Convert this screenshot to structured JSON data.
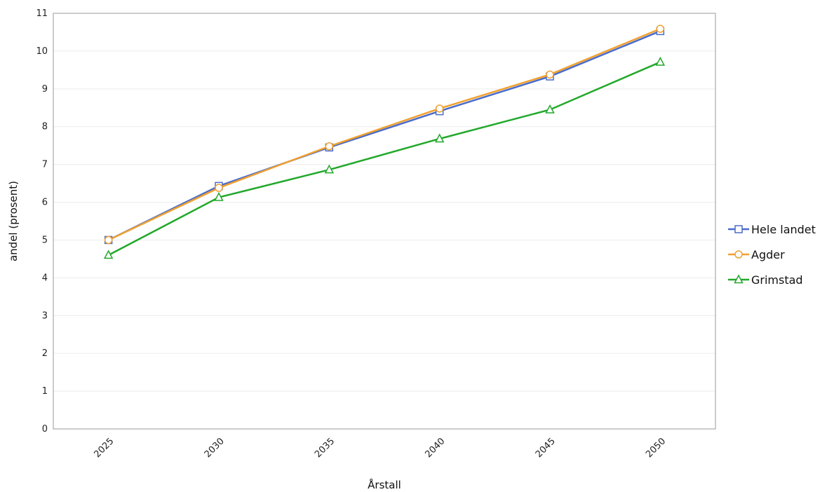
{
  "chart_data": {
    "type": "line",
    "title": "",
    "xlabel": "Årstall",
    "ylabel": "andel (prosent)",
    "categories": [
      "2025",
      "2030",
      "2035",
      "2040",
      "2045",
      "2050"
    ],
    "ylim": [
      0,
      11
    ],
    "yticks": [
      0,
      1,
      2,
      3,
      4,
      5,
      6,
      7,
      8,
      9,
      10,
      11
    ],
    "grid": true,
    "legend_position": "right",
    "series": [
      {
        "name": "Hele landet",
        "color": "#4a6cc9",
        "marker": "square",
        "values": [
          5.0,
          6.43,
          7.45,
          8.41,
          9.33,
          10.53
        ]
      },
      {
        "name": "Agder",
        "color": "#f0a030",
        "marker": "circle",
        "values": [
          5.0,
          6.38,
          7.48,
          8.48,
          9.38,
          10.59
        ]
      },
      {
        "name": "Grimstad",
        "color": "#22a82a",
        "marker": "triangle",
        "values": [
          4.6,
          6.13,
          6.86,
          7.68,
          8.45,
          9.71
        ]
      }
    ]
  }
}
